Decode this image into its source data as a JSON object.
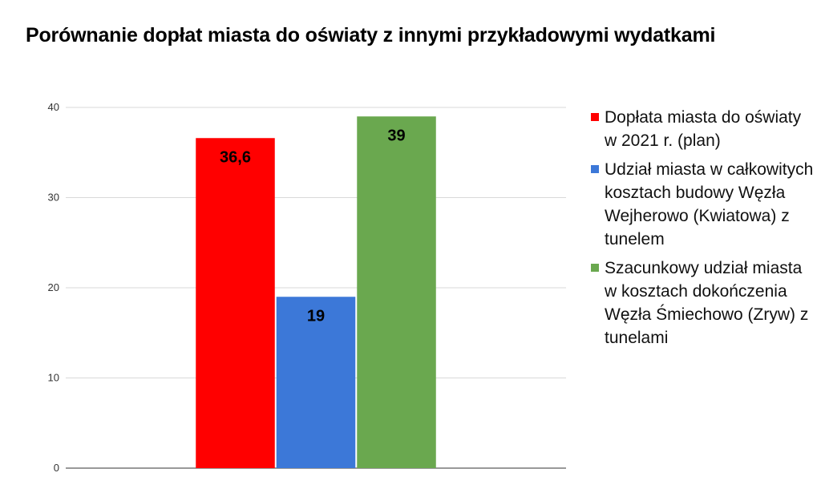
{
  "chart_data": {
    "type": "bar",
    "title": "Porównanie dopłat miasta do oświaty z innymi przykładowymi wydatkami",
    "categories": [
      ""
    ],
    "series": [
      {
        "name": "Dopłata miasta do oświaty w 2021 r. (plan)",
        "values": [
          36.6
        ],
        "label": "36,6",
        "color": "#ff0000"
      },
      {
        "name": "Udział miasta w całkowitych kosztach budowy Węzła Wejherowo (Kwiatowa) z tunelem",
        "values": [
          19
        ],
        "label": "19",
        "color": "#3c78d8"
      },
      {
        "name": "Szacunkowy udział miasta w kosztach dokończenia Węzła Śmiechowo (Zryw) z tunelami",
        "values": [
          39
        ],
        "label": "39",
        "color": "#6aa84f"
      }
    ],
    "yticks": [
      "0",
      "10",
      "20",
      "30",
      "40"
    ],
    "ylim": [
      0,
      40
    ],
    "grid": true,
    "legend_position": "right"
  }
}
